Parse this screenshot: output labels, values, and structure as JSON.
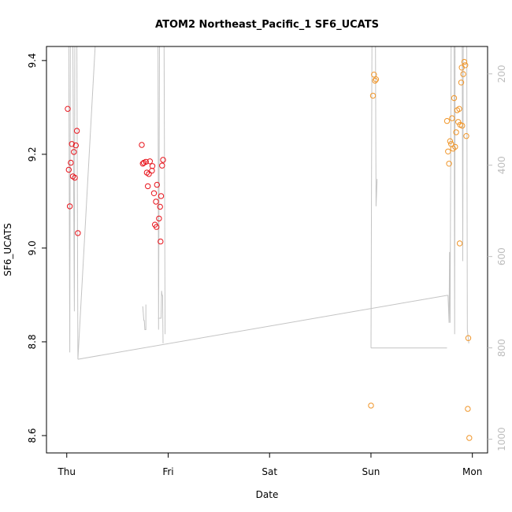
{
  "chart_data": {
    "type": "scatter",
    "title": "ATOM2 Northeast_Pacific_1 SF6_UCATS",
    "xlabel": "Date",
    "ylabel": "SF6_UCATS",
    "x_axis": {
      "range_days": [
        -0.2,
        4.15
      ],
      "ticks": [
        {
          "label": "Thu",
          "value": 0
        },
        {
          "label": "Fri",
          "value": 1
        },
        {
          "label": "Sat",
          "value": 2
        },
        {
          "label": "Sun",
          "value": 3
        },
        {
          "label": "Mon",
          "value": 4
        }
      ]
    },
    "y_axis": {
      "range": [
        8.563,
        9.43
      ],
      "ticks": [
        8.6,
        8.8,
        9.0,
        9.2,
        9.4
      ],
      "tick_labels": [
        "8.6",
        "8.8",
        "9.0",
        "9.2",
        "9.4"
      ]
    },
    "y2_axis": {
      "range_reversed": [
        1030,
        140
      ],
      "ticks": [
        200,
        400,
        600,
        800,
        1000
      ],
      "tick_labels": [
        "200",
        "400",
        "600",
        "800",
        "1000"
      ],
      "color": "#bdbdbd"
    },
    "grid": false,
    "colors": {
      "series_1": "#e8141c",
      "series_2": "#f0962a",
      "altitude_line": "#c4c4c4"
    },
    "series": [
      {
        "color": "#e8141c",
        "points": [
          [
            0.01,
            9.297
          ],
          [
            0.02,
            9.167
          ],
          [
            0.03,
            9.089
          ],
          [
            0.04,
            9.182
          ],
          [
            0.05,
            9.222
          ],
          [
            0.06,
            9.153
          ],
          [
            0.07,
            9.205
          ],
          [
            0.08,
            9.15
          ],
          [
            0.09,
            9.219
          ],
          [
            0.1,
            9.25
          ],
          [
            0.11,
            9.032
          ],
          [
            0.74,
            9.22
          ],
          [
            0.75,
            9.18
          ],
          [
            0.76,
            9.182
          ],
          [
            0.78,
            9.184
          ],
          [
            0.79,
            9.161
          ],
          [
            0.8,
            9.132
          ],
          [
            0.81,
            9.158
          ],
          [
            0.82,
            9.185
          ],
          [
            0.84,
            9.165
          ],
          [
            0.845,
            9.175
          ],
          [
            0.86,
            9.117
          ],
          [
            0.87,
            9.05
          ],
          [
            0.88,
            9.099
          ],
          [
            0.885,
            9.045
          ],
          [
            0.89,
            9.135
          ],
          [
            0.91,
            9.063
          ],
          [
            0.92,
            9.088
          ],
          [
            0.925,
            9.014
          ],
          [
            0.93,
            9.111
          ],
          [
            0.94,
            9.176
          ],
          [
            0.95,
            9.188
          ]
        ]
      },
      {
        "color": "#f0962a",
        "points": [
          [
            3.0,
            8.664
          ],
          [
            3.02,
            9.325
          ],
          [
            3.03,
            9.37
          ],
          [
            3.04,
            9.357
          ],
          [
            3.05,
            9.36
          ],
          [
            3.75,
            9.271
          ],
          [
            3.76,
            9.206
          ],
          [
            3.77,
            9.18
          ],
          [
            3.78,
            9.228
          ],
          [
            3.79,
            9.222
          ],
          [
            3.8,
            9.277
          ],
          [
            3.81,
            9.212
          ],
          [
            3.82,
            9.32
          ],
          [
            3.83,
            9.216
          ],
          [
            3.84,
            9.247
          ],
          [
            3.85,
            9.294
          ],
          [
            3.86,
            9.269
          ],
          [
            3.87,
            9.297
          ],
          [
            3.875,
            9.01
          ],
          [
            3.88,
            9.263
          ],
          [
            3.89,
            9.353
          ],
          [
            3.895,
            9.385
          ],
          [
            3.9,
            9.261
          ],
          [
            3.91,
            9.371
          ],
          [
            3.92,
            9.397
          ],
          [
            3.93,
            9.39
          ],
          [
            3.94,
            9.239
          ],
          [
            3.955,
            8.657
          ],
          [
            3.96,
            8.808
          ],
          [
            3.97,
            8.595
          ]
        ]
      }
    ],
    "altitude_line": [
      [
        0.0,
        140
      ],
      [
        0.02,
        140
      ],
      [
        0.03,
        810
      ],
      [
        0.035,
        140
      ],
      [
        0.05,
        140
      ],
      [
        0.06,
        140
      ],
      [
        0.075,
        720
      ],
      [
        0.08,
        140
      ],
      [
        0.09,
        140
      ],
      [
        0.1,
        140
      ],
      [
        0.11,
        825
      ],
      [
        0.28,
        140
      ],
      [
        0.75,
        140
      ],
      [
        0.85,
        140
      ],
      [
        0.86,
        140
      ],
      [
        0.88,
        140
      ],
      [
        0.885,
        140
      ],
      [
        0.89,
        140
      ],
      [
        0.9,
        140
      ],
      [
        0.905,
        760
      ],
      [
        0.915,
        140
      ],
      [
        0.925,
        140
      ],
      [
        0.935,
        140
      ],
      [
        0.945,
        140
      ],
      [
        0.95,
        140
      ],
      [
        0.96,
        140
      ],
      [
        0.97,
        770
      ]
    ],
    "altitude_segments": [
      [
        [
          0.745,
          710
        ],
        [
          0.75,
          710
        ],
        [
          0.76,
          740
        ],
        [
          0.765,
          740
        ],
        [
          0.77,
          760
        ],
        [
          0.78,
          760
        ],
        [
          0.78,
          705
        ]
      ],
      [
        [
          0.9,
          735
        ],
        [
          0.93,
          735
        ],
        [
          0.935,
          675
        ],
        [
          0.94,
          685
        ],
        [
          0.945,
          685
        ],
        [
          0.95,
          790
        ]
      ],
      [
        [
          3.0,
          800
        ],
        [
          3.01,
          140
        ],
        [
          3.015,
          140
        ],
        [
          3.02,
          140
        ],
        [
          3.025,
          140
        ],
        [
          3.03,
          140
        ],
        [
          3.035,
          140
        ],
        [
          3.04,
          140
        ],
        [
          3.045,
          140
        ],
        [
          3.05,
          490
        ],
        [
          3.055,
          465
        ],
        [
          3.06,
          430
        ]
      ],
      [
        [
          3.0,
          800
        ],
        [
          3.75,
          800
        ]
      ],
      [
        [
          0.11,
          825
        ],
        [
          3.75,
          685
        ],
        [
          3.76,
          685
        ],
        [
          3.77,
          745
        ],
        [
          3.775,
          590
        ],
        [
          3.78,
          745
        ],
        [
          3.79,
          140
        ],
        [
          3.8,
          140
        ],
        [
          3.81,
          140
        ],
        [
          3.82,
          140
        ],
        [
          3.825,
          770
        ],
        [
          3.83,
          140
        ],
        [
          3.84,
          140
        ],
        [
          3.845,
          140
        ],
        [
          3.85,
          140
        ],
        [
          3.86,
          140
        ],
        [
          3.87,
          140
        ],
        [
          3.88,
          140
        ],
        [
          3.89,
          140
        ],
        [
          3.9,
          140
        ],
        [
          3.905,
          610
        ],
        [
          3.91,
          140
        ],
        [
          3.92,
          140
        ],
        [
          3.93,
          140
        ],
        [
          3.94,
          140
        ],
        [
          3.945,
          140
        ],
        [
          3.95,
          760
        ],
        [
          3.96,
          780
        ],
        [
          3.965,
          790
        ]
      ]
    ]
  }
}
